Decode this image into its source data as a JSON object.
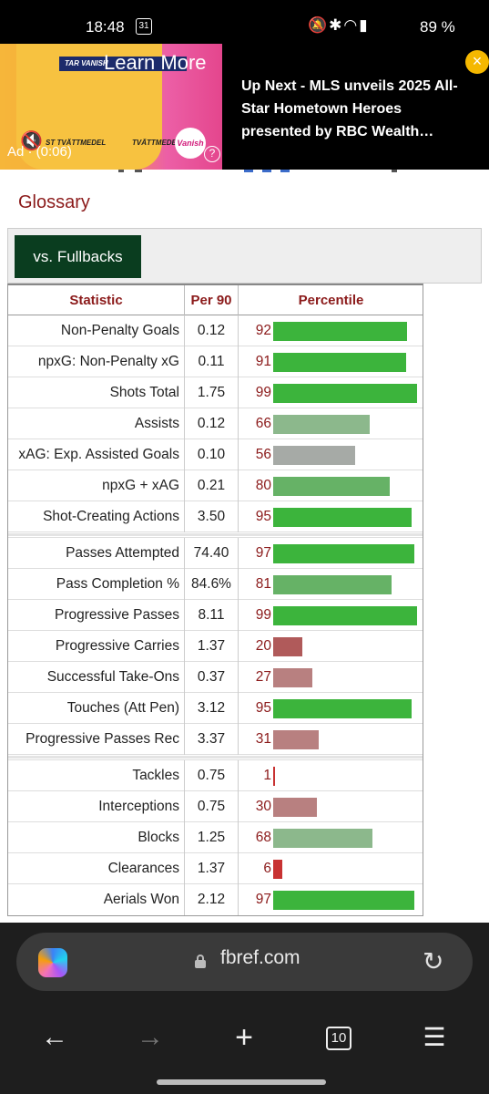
{
  "status_bar": {
    "time": "18:48",
    "calendar_day": "31",
    "battery": "89 %"
  },
  "ad": {
    "learn_more": "Learn More",
    "banner_text": "TAR VANISH",
    "product_left": "ST TVÄTTMEDEL",
    "product_right": "TVÄTTMEDEL+",
    "brand": "Vanish",
    "timer": "Ad · (0:06)",
    "up_next": "Up Next - MLS unveils 2025 All-Star Hometown Heroes presented by RBC Wealth…",
    "close_label": "×"
  },
  "page": {
    "glossary": "Glossary",
    "filter_button": "vs. Fullbacks"
  },
  "table": {
    "headers": {
      "statistic": "Statistic",
      "per90": "Per 90",
      "percentile": "Percentile"
    },
    "groups": [
      [
        {
          "stat": "Non-Penalty Goals",
          "per90": "0.12",
          "pct": 92
        },
        {
          "stat": "npxG: Non-Penalty xG",
          "per90": "0.11",
          "pct": 91
        },
        {
          "stat": "Shots Total",
          "per90": "1.75",
          "pct": 99
        },
        {
          "stat": "Assists",
          "per90": "0.12",
          "pct": 66
        },
        {
          "stat": "xAG: Exp. Assisted Goals",
          "per90": "0.10",
          "pct": 56
        },
        {
          "stat": "npxG + xAG",
          "per90": "0.21",
          "pct": 80
        },
        {
          "stat": "Shot-Creating Actions",
          "per90": "3.50",
          "pct": 95
        }
      ],
      [
        {
          "stat": "Passes Attempted",
          "per90": "74.40",
          "pct": 97
        },
        {
          "stat": "Pass Completion %",
          "per90": "84.6%",
          "pct": 81
        },
        {
          "stat": "Progressive Passes",
          "per90": "8.11",
          "pct": 99
        },
        {
          "stat": "Progressive Carries",
          "per90": "1.37",
          "pct": 20
        },
        {
          "stat": "Successful Take-Ons",
          "per90": "0.37",
          "pct": 27
        },
        {
          "stat": "Touches (Att Pen)",
          "per90": "3.12",
          "pct": 95
        },
        {
          "stat": "Progressive Passes Rec",
          "per90": "3.37",
          "pct": 31
        }
      ],
      [
        {
          "stat": "Tackles",
          "per90": "0.75",
          "pct": 1
        },
        {
          "stat": "Interceptions",
          "per90": "0.75",
          "pct": 30
        },
        {
          "stat": "Blocks",
          "per90": "1.25",
          "pct": 68
        },
        {
          "stat": "Clearances",
          "per90": "1.37",
          "pct": 6
        },
        {
          "stat": "Aerials Won",
          "per90": "2.12",
          "pct": 97
        }
      ]
    ],
    "colors": {
      "very_high": "#3cb43c",
      "high": "#66b266",
      "mid_high": "#8cb88c",
      "mid": "#a6aaa6",
      "low": "#b88080",
      "very_low": "#b05a5a",
      "lowest": "#c83232"
    }
  },
  "browser": {
    "url": "fbref.com",
    "tab_count": "10"
  }
}
